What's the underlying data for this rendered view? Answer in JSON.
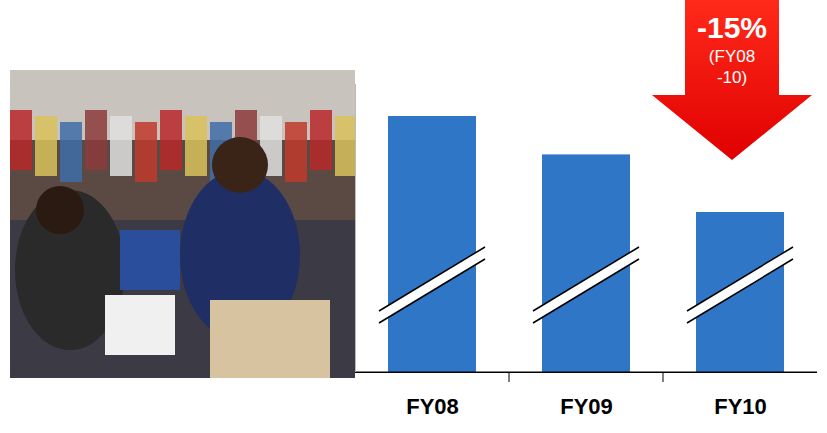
{
  "chart_data": {
    "type": "bar",
    "categories": [
      "FY08",
      "FY09",
      "FY10"
    ],
    "values": [
      100,
      94,
      85
    ],
    "color": "#2f76c6",
    "ylim": [
      60,
      105
    ],
    "yticks": [],
    "tick_labels": "x",
    "annotations": [
      "-15%",
      "(FY08\n-10)"
    ]
  }
}
